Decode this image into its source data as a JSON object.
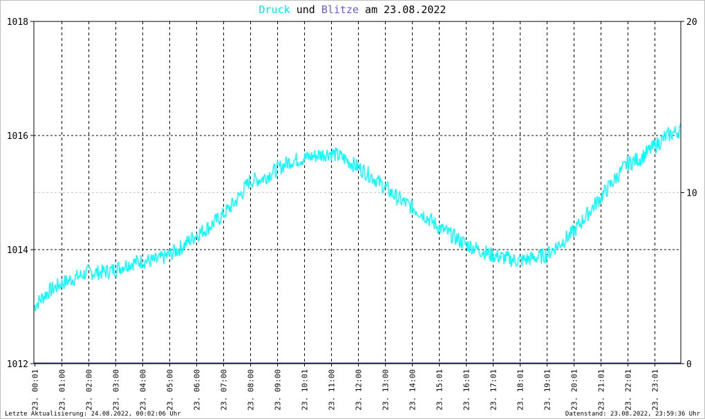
{
  "title": {
    "part1": "Druck",
    "part2": " und ",
    "part3": "Blitze",
    "part4": " am 23.08.2022",
    "color1": "#00e5ee",
    "color2": "#000000",
    "color3": "#6a5acd",
    "color4": "#000000"
  },
  "footer": {
    "left": "Letzte Aktualisierung: 24.08.2022, 00:02:06 Uhr",
    "right": "Datenstand: 23.08.2022, 23:59:36 Uhr"
  },
  "chart_data": {
    "type": "line",
    "y_left": {
      "min": 1012,
      "max": 1018,
      "ticks": [
        "1012",
        "1014",
        "1016",
        "1018"
      ]
    },
    "y_right": {
      "min": 0,
      "max": 20,
      "ticks": [
        "0",
        "10",
        "20"
      ]
    },
    "x_ticks": [
      "23. 00:01",
      "23. 01:00",
      "23. 02:00",
      "23. 03:00",
      "23. 04:00",
      "23. 05:00",
      "23. 06:00",
      "23. 07:00",
      "23. 08:00",
      "23. 09:00",
      "23. 10:01",
      "23. 11:00",
      "23. 12:00",
      "23. 13:00",
      "23. 14:00",
      "23. 15:01",
      "23. 16:01",
      "23. 17:01",
      "23. 18:01",
      "23. 19:01",
      "23. 20:01",
      "23. 21:01",
      "23. 22:01",
      "23. 23:01"
    ],
    "series": [
      {
        "name": "Druck",
        "axis": "left",
        "color": "#00ffff",
        "x_hours": [
          0,
          0.5,
          1,
          1.5,
          2,
          2.5,
          3,
          3.5,
          4,
          4.5,
          5,
          5.5,
          6,
          6.5,
          7,
          7.5,
          8,
          8.5,
          9,
          9.5,
          10,
          10.5,
          11,
          11.5,
          12,
          12.5,
          13,
          13.5,
          14,
          14.5,
          15,
          15.5,
          16,
          16.5,
          17,
          17.5,
          18,
          18.5,
          19,
          19.5,
          20,
          20.5,
          21,
          21.5,
          22,
          22.5,
          23,
          23.5,
          24
        ],
        "values": [
          1013.0,
          1013.25,
          1013.4,
          1013.5,
          1013.6,
          1013.6,
          1013.65,
          1013.75,
          1013.8,
          1013.8,
          1013.9,
          1014.05,
          1014.25,
          1014.4,
          1014.6,
          1014.85,
          1015.2,
          1015.25,
          1015.4,
          1015.55,
          1015.6,
          1015.65,
          1015.7,
          1015.6,
          1015.45,
          1015.3,
          1015.1,
          1014.9,
          1014.75,
          1014.6,
          1014.4,
          1014.25,
          1014.1,
          1014.0,
          1013.9,
          1013.85,
          1013.8,
          1013.85,
          1013.9,
          1014.1,
          1014.3,
          1014.6,
          1014.9,
          1015.2,
          1015.5,
          1015.6,
          1015.8,
          1016.0,
          1016.1
        ]
      },
      {
        "name": "Blitze",
        "axis": "right",
        "color": "#191970",
        "x_hours": [
          0,
          24
        ],
        "values": [
          0,
          0
        ]
      }
    ],
    "grid": true
  }
}
